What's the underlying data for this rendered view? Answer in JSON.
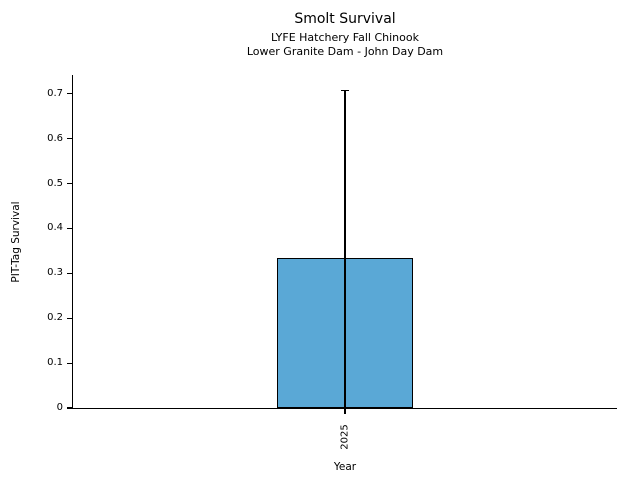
{
  "chart_data": {
    "type": "bar",
    "title": "Smolt Survival",
    "subtitle_lines": [
      "LYFE Hatchery Fall Chinook",
      "Lower Granite Dam - John Day Dam"
    ],
    "xlabel": "Year",
    "ylabel": "PIT-Tag Survival",
    "categories": [
      "2025"
    ],
    "values": [
      0.334
    ],
    "error_low": [
      0.0
    ],
    "error_high": [
      0.707
    ],
    "ylim": [
      0,
      0.742
    ],
    "yticks": [
      0,
      0.1,
      0.2,
      0.3,
      0.4,
      0.5,
      0.6,
      0.7
    ],
    "ytick_labels": [
      "0",
      "0.1",
      "0.2",
      "0.3",
      "0.4",
      "0.5",
      "0.6",
      "0.7"
    ],
    "grid": false,
    "legend_position": "none",
    "bar_color": "#5aa8d6",
    "bar_edge_color": "#000000",
    "axis_color": "#000000"
  }
}
